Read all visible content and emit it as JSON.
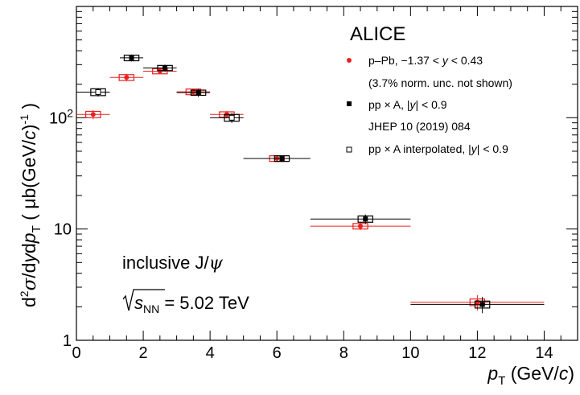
{
  "chart_data": {
    "type": "scatter",
    "xlabel": "p_T (GeV/c)",
    "ylabel": "d²σ/dydp_T ( μb(GeV/c)⁻¹ )",
    "x_scale": "linear",
    "y_scale": "log",
    "xlim": [
      0,
      15
    ],
    "ylim": [
      1,
      1000
    ],
    "x_ticks": [
      0,
      2,
      4,
      6,
      8,
      10,
      12,
      14
    ],
    "y_ticks": [
      1,
      10,
      100
    ],
    "legend_position": "top-right",
    "experiment": "ALICE",
    "annotations": [
      "inclusive J/ψ",
      "√s_NN = 5.02 TeV"
    ],
    "series": [
      {
        "name": "p–Pb, −1.37 < y < 0.43",
        "sublabel": "(3.7% norm. unc. not shown)",
        "color": "#e8221e",
        "marker": "filled-circle",
        "points": [
          {
            "x": 0.5,
            "xlo": 0,
            "xhi": 1,
            "y": 107,
            "ystat": 10,
            "ysys": 7
          },
          {
            "x": 1.5,
            "xlo": 1,
            "xhi": 2,
            "y": 230,
            "ystat": 18,
            "ysys": 14
          },
          {
            "x": 2.5,
            "xlo": 2,
            "xhi": 3,
            "y": 262,
            "ystat": 16,
            "ysys": 14
          },
          {
            "x": 3.5,
            "xlo": 3,
            "xhi": 4,
            "y": 171,
            "ystat": 12,
            "ysys": 10
          },
          {
            "x": 4.5,
            "xlo": 4,
            "xhi": 5,
            "y": 107,
            "ystat": 8,
            "ysys": 6
          },
          {
            "x": 6.0,
            "xlo": 5,
            "xhi": 7,
            "y": 43,
            "ystat": 3,
            "ysys": 2.5
          },
          {
            "x": 8.5,
            "xlo": 7,
            "xhi": 10,
            "y": 10.6,
            "ystat": 0.8,
            "ysys": 0.6
          },
          {
            "x": 12.0,
            "xlo": 10,
            "xhi": 14,
            "y": 2.2,
            "ystat": 0.35,
            "ysys": 0.15
          }
        ]
      },
      {
        "name": "pp × A,  |y| < 0.9",
        "sublabel": "JHEP 10 (2019) 084",
        "color": "#000000",
        "marker": "filled-square",
        "points": [
          {
            "x": 1.65,
            "xlo": 1.3,
            "xhi": 2.0,
            "y": 345,
            "ystat": 25,
            "ysys": 20
          },
          {
            "x": 2.65,
            "xlo": 2.0,
            "xhi": 3.0,
            "y": 280,
            "ystat": 20,
            "ysys": 15
          },
          {
            "x": 3.65,
            "xlo": 3.0,
            "xhi": 4.0,
            "y": 168,
            "ystat": 14,
            "ysys": 9
          },
          {
            "x": 6.15,
            "xlo": 5.0,
            "xhi": 7.0,
            "y": 43,
            "ystat": 3,
            "ysys": 2.5
          },
          {
            "x": 8.65,
            "xlo": 7.0,
            "xhi": 10.0,
            "y": 12.3,
            "ystat": 1.2,
            "ysys": 0.8
          },
          {
            "x": 12.15,
            "xlo": 10.0,
            "xhi": 14.0,
            "y": 2.1,
            "ystat": 0.35,
            "ysys": 0.15
          }
        ]
      },
      {
        "name": "pp × A interpolated,  |y| < 0.9",
        "color": "#000000",
        "marker": "open-square",
        "points": [
          {
            "x": 0.65,
            "xlo": 0.0,
            "xhi": 1.0,
            "y": 170,
            "ystat": 15,
            "ysys": 12
          },
          {
            "x": 4.65,
            "xlo": 4.0,
            "xhi": 5.0,
            "y": 100,
            "ystat": 10,
            "ysys": 7
          }
        ]
      }
    ]
  }
}
